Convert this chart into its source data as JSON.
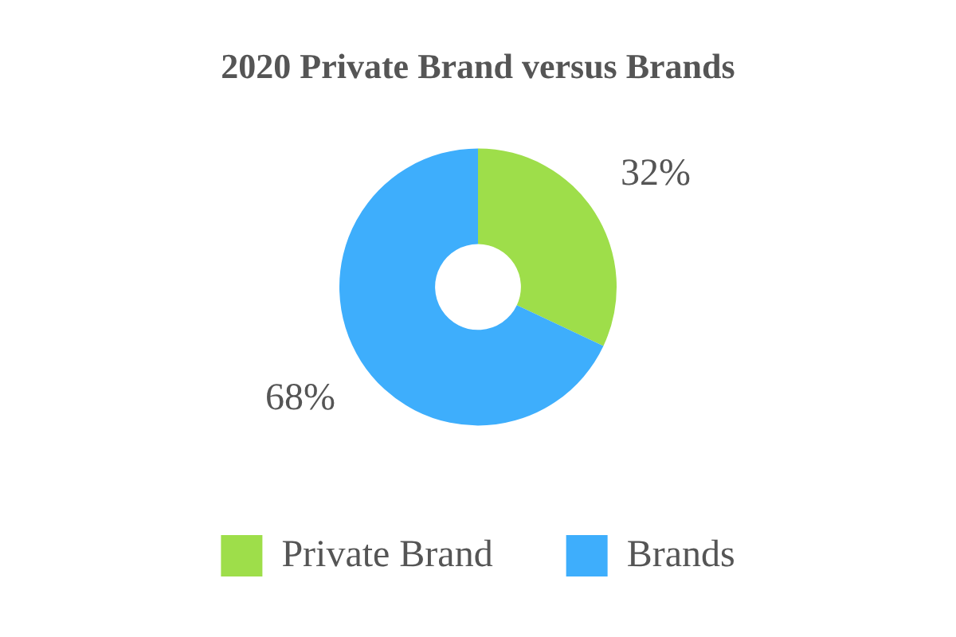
{
  "chart_data": {
    "type": "donut",
    "title": "2020 Private Brand versus Brands",
    "categories": [
      "Private Brand",
      "Brands"
    ],
    "values": [
      32,
      68
    ],
    "colors": [
      "#9ede4a",
      "#3eaefc"
    ],
    "value_labels": [
      "32%",
      "68%"
    ],
    "legend": "bottom"
  }
}
